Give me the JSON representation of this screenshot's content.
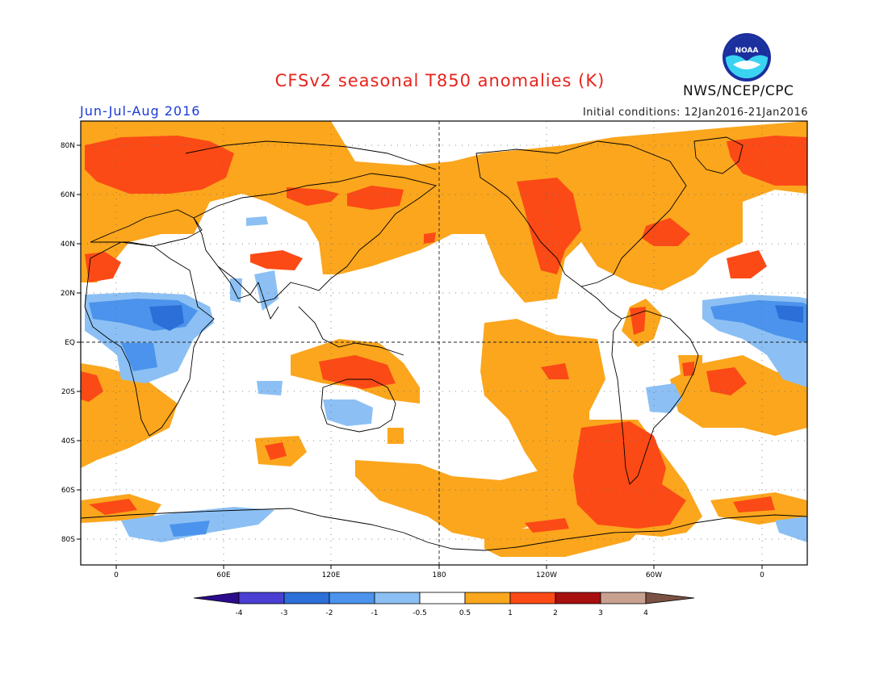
{
  "header": {
    "title": "CFSv2 seasonal T850 anomalies (K)",
    "period": "Jun-Jul-Aug 2016",
    "initial_conditions": "Initial conditions: 12Jan2016-21Jan2016",
    "org": "NWS/NCEP/CPC",
    "logo_text": "NOAA"
  },
  "map": {
    "lat_labels": [
      "80N",
      "60N",
      "40N",
      "20N",
      "EQ",
      "20S",
      "40S",
      "60S",
      "80S"
    ],
    "lon_labels": [
      "0",
      "60E",
      "120E",
      "180",
      "120W",
      "60W",
      "0"
    ]
  },
  "colorbar": {
    "tick_labels": [
      "-4",
      "-3",
      "-2",
      "-1",
      "-0.5",
      "0.5",
      "1",
      "2",
      "3",
      "4"
    ],
    "colors": [
      "#2c0b8c",
      "#4a3fd2",
      "#2c6fd8",
      "#4b93ec",
      "#8cc0f4",
      "#ffffff",
      "#fba61d",
      "#fb4a16",
      "#a80f0f",
      "#c9a191",
      "#7a5142"
    ]
  },
  "colors": {
    "title": "#e8231c",
    "period": "#1a3bd6",
    "warm_05": "#fba61d",
    "warm_1": "#fb4a16",
    "cool_05": "#8cc0f4",
    "cool_1": "#4b93ec",
    "cool_2": "#2c6fd8"
  }
}
